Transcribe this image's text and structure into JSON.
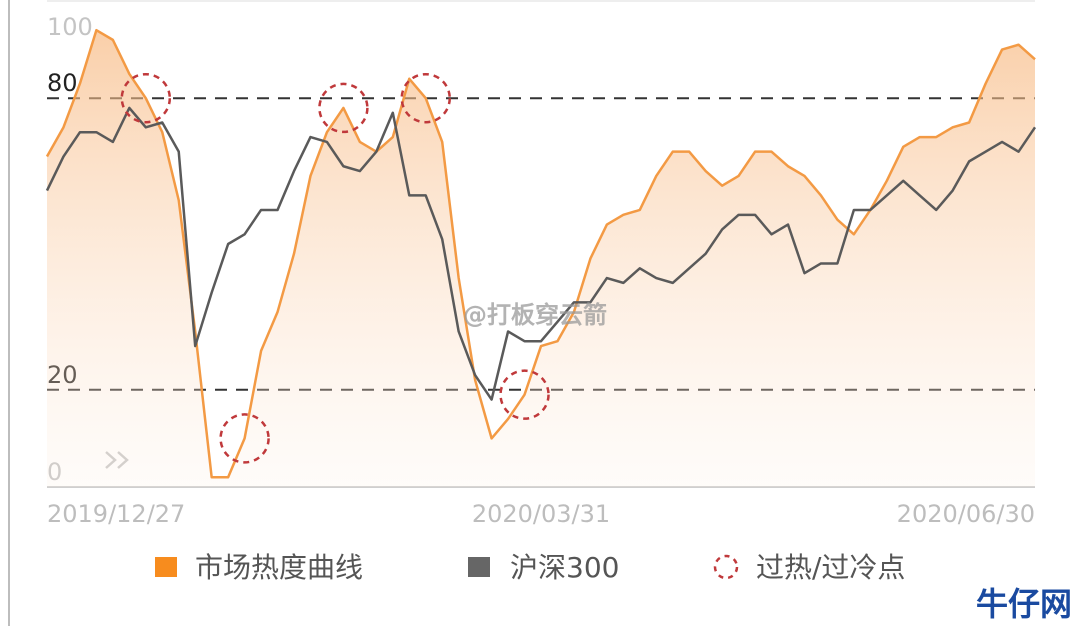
{
  "chart_data": {
    "type": "line",
    "categories": [
      "2019/12/27",
      null,
      null,
      null,
      null,
      null,
      null,
      null,
      null,
      null,
      null,
      null,
      null,
      null,
      null,
      null,
      null,
      null,
      null,
      null,
      null,
      null,
      null,
      null,
      null,
      null,
      null,
      null,
      null,
      null,
      "2020/03/31",
      null,
      null,
      null,
      null,
      null,
      null,
      null,
      null,
      null,
      null,
      null,
      null,
      null,
      null,
      null,
      null,
      null,
      null,
      null,
      null,
      null,
      null,
      null,
      null,
      null,
      null,
      null,
      null,
      null,
      "2020/06/30"
    ],
    "series": [
      {
        "name": "市场热度曲线",
        "type": "area",
        "color": "#f39a44",
        "legend_color": "#f78c1e",
        "values": [
          68,
          74,
          83,
          94,
          92,
          85,
          80,
          73,
          59,
          32,
          2,
          2,
          10,
          28,
          36,
          48,
          64,
          73,
          78,
          71,
          69,
          72,
          84,
          80,
          71,
          43,
          22,
          10,
          14,
          19,
          29,
          30,
          36,
          47,
          54,
          56,
          57,
          64,
          69,
          69,
          65,
          62,
          64,
          69,
          69,
          66,
          64,
          60,
          55,
          52,
          57,
          63,
          70,
          72,
          72,
          74,
          75,
          83,
          90,
          91,
          88
        ]
      },
      {
        "name": "沪深300",
        "type": "line",
        "color": "#5a5a5a",
        "legend_color": "#666666",
        "values": [
          61,
          68,
          73,
          73,
          71,
          78,
          74,
          75,
          69,
          29,
          40,
          50,
          52,
          57,
          57,
          65,
          72,
          71,
          66,
          65,
          69,
          77,
          60,
          60,
          51,
          32,
          23,
          18,
          32,
          30,
          30,
          34,
          38,
          38,
          43,
          42,
          45,
          43,
          42,
          45,
          48,
          53,
          56,
          56,
          52,
          54,
          44,
          46,
          46,
          57,
          57,
          60,
          63,
          60,
          57,
          61,
          67,
          69,
          71,
          69,
          74
        ]
      },
      {
        "name": "过热/过冷点",
        "type": "marker",
        "color": "#c0393b",
        "legend_color": "#c0393b",
        "values": [
          null,
          null,
          null,
          null,
          null,
          null,
          80,
          null,
          null,
          null,
          null,
          null,
          10,
          null,
          null,
          null,
          null,
          null,
          78,
          null,
          null,
          null,
          null,
          80,
          null,
          null,
          null,
          null,
          null,
          19,
          null,
          null,
          null,
          null,
          null,
          null,
          null,
          null,
          null,
          null,
          null,
          null,
          null,
          null,
          null,
          null,
          null,
          null,
          null,
          null,
          null,
          null,
          null,
          null,
          null,
          null,
          null,
          null,
          null,
          null,
          null
        ]
      }
    ],
    "ylim": [
      0,
      100
    ],
    "yticks": [
      0,
      20,
      80,
      100
    ],
    "reference_lines": [
      20,
      80
    ],
    "watermark": "@打板穿云箭",
    "logo": "牛仔网"
  }
}
